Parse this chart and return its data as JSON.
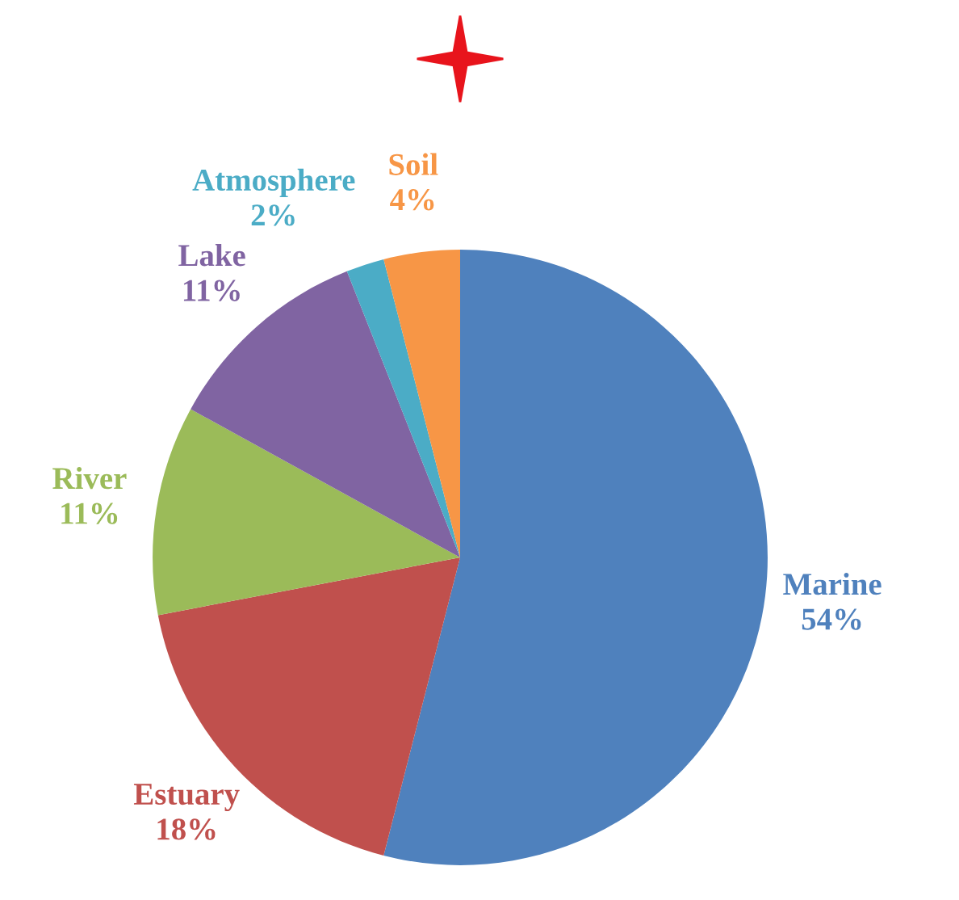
{
  "chart_data": {
    "type": "pie",
    "categories": [
      "Marine",
      "Estuary",
      "River",
      "Lake",
      "Atmosphere",
      "Soil"
    ],
    "values": [
      54,
      18,
      11,
      11,
      2,
      4
    ],
    "colors": [
      "#4f81bd",
      "#c0504d",
      "#9bbb59",
      "#8064a2",
      "#4bacc6",
      "#f79646"
    ],
    "value_labels": [
      "54%",
      "18%",
      "11%",
      "11%",
      "2%",
      "4%"
    ]
  }
}
